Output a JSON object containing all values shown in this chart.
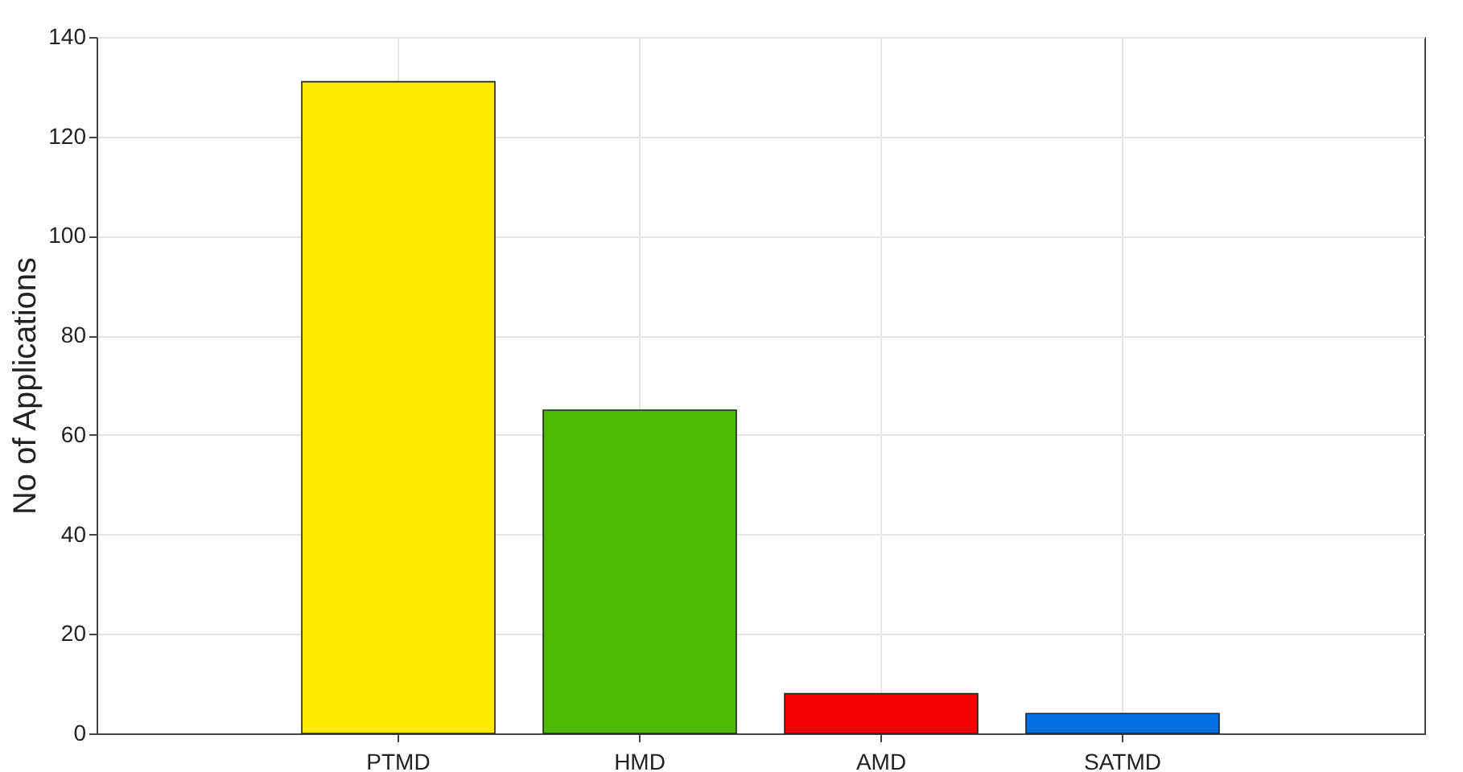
{
  "chart_data": {
    "type": "bar",
    "ylabel": "No of Applications",
    "categories": [
      "PTMD",
      "HMD",
      "AMD",
      "SATMD"
    ],
    "values": [
      131,
      65,
      8,
      4
    ],
    "colors": [
      "#ffea00",
      "#4cb800",
      "#f20000",
      "#0070e0"
    ],
    "ylim": [
      0,
      140
    ],
    "yticks": [
      0,
      20,
      40,
      60,
      80,
      100,
      120,
      140
    ],
    "grid": true
  }
}
